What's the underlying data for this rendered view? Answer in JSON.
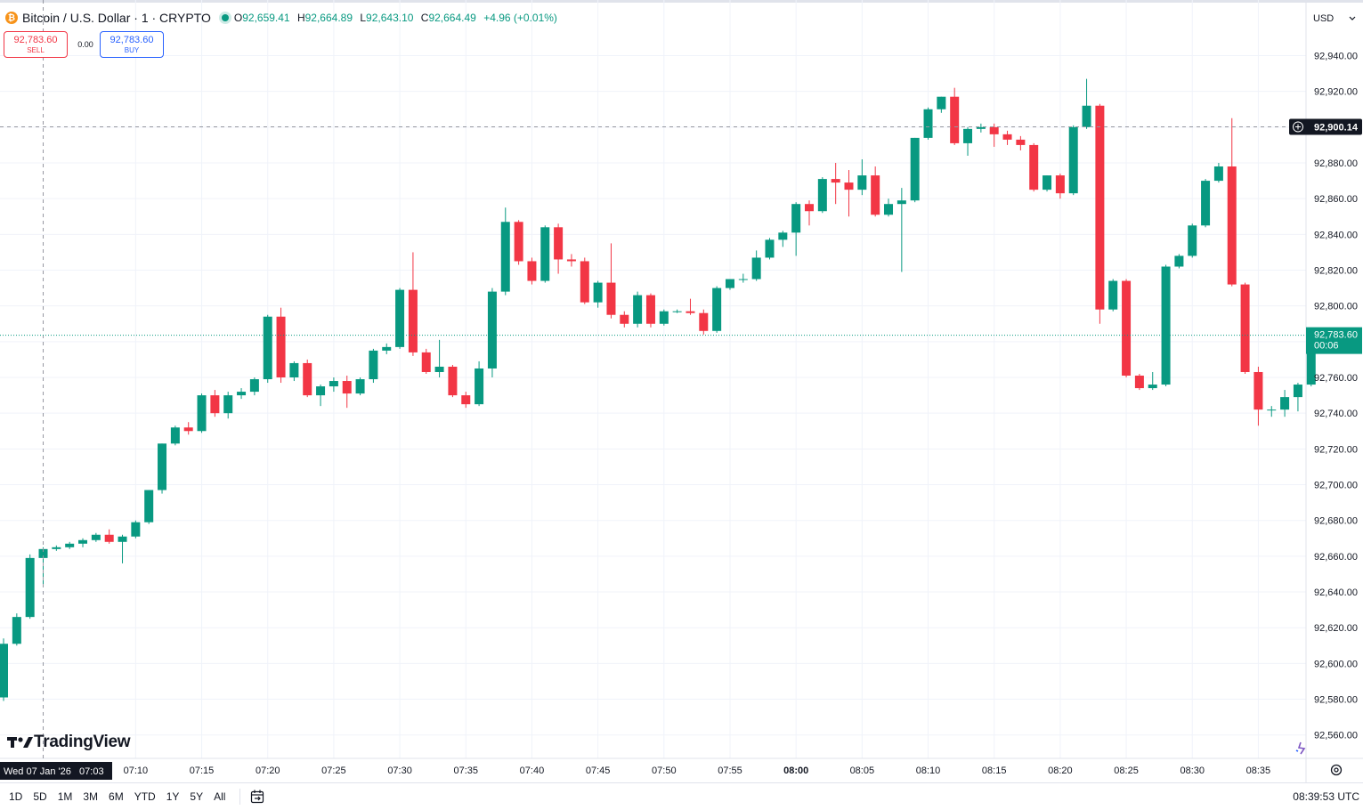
{
  "header": {
    "coin_icon_glyph": "₿",
    "symbol_title": "Bitcoin / U.S. Dollar · 1 · CRYPTO",
    "ohlc": {
      "o_label": "O",
      "o": "92,659.41",
      "h_label": "H",
      "h": "92,664.89",
      "l_label": "L",
      "l": "92,643.10",
      "c_label": "C",
      "c": "92,664.49",
      "change": "+4.96 (+0.01%)"
    }
  },
  "trade": {
    "sell_price": "92,783.60",
    "sell_label": "SELL",
    "spread": "0.00",
    "buy_price": "92,783.60",
    "buy_label": "BUY"
  },
  "currency": {
    "label": "USD"
  },
  "branding": {
    "logo_text": "TradingView"
  },
  "bottom_bar": {
    "ranges": [
      "1D",
      "5D",
      "1M",
      "3M",
      "6M",
      "YTD",
      "1Y",
      "5Y",
      "All"
    ],
    "clock": "08:39:53 UTC"
  },
  "crosshair": {
    "time_label": "Wed 07 Jan '26   07:03",
    "price_label": "92,900.14"
  },
  "last_price": {
    "price": "92,783.60",
    "countdown": "00:06"
  },
  "colors": {
    "up": "#089981",
    "down": "#f23645",
    "grid": "#f0f3fa",
    "text": "#131722"
  },
  "chart_data": {
    "type": "candlestick",
    "symbol": "Bitcoin / U.S. Dollar",
    "interval": "1",
    "x_start": "07:00",
    "x_ticks": [
      "07:10",
      "07:15",
      "07:20",
      "07:25",
      "07:30",
      "07:35",
      "07:40",
      "07:45",
      "07:50",
      "07:55",
      "08:00",
      "08:05",
      "08:10",
      "08:15",
      "08:20",
      "08:25",
      "08:30",
      "08:35"
    ],
    "y_ticks": [
      "92,560.00",
      "92,580.00",
      "92,600.00",
      "92,620.00",
      "92,640.00",
      "92,660.00",
      "92,680.00",
      "92,700.00",
      "92,720.00",
      "92,740.00",
      "92,760.00",
      "92,780.00",
      "92,800.00",
      "92,820.00",
      "92,840.00",
      "92,860.00",
      "92,880.00",
      "92,900.00",
      "92,920.00",
      "92,940.00"
    ],
    "ylim": [
      92550,
      92963
    ],
    "grid": true,
    "candles": [
      {
        "t": "07:00",
        "o": 92581,
        "h": 92614,
        "l": 92579,
        "c": 92611
      },
      {
        "t": "07:01",
        "o": 92611,
        "h": 92628,
        "l": 92610,
        "c": 92626
      },
      {
        "t": "07:02",
        "o": 92626,
        "h": 92661,
        "l": 92625,
        "c": 92659
      },
      {
        "t": "07:03",
        "o": 92659,
        "h": 92665,
        "l": 92643,
        "c": 92664
      },
      {
        "t": "07:04",
        "o": 92664,
        "h": 92666,
        "l": 92663,
        "c": 92665
      },
      {
        "t": "07:05",
        "o": 92665,
        "h": 92668,
        "l": 92664,
        "c": 92667
      },
      {
        "t": "07:06",
        "o": 92667,
        "h": 92670,
        "l": 92665,
        "c": 92669
      },
      {
        "t": "07:07",
        "o": 92669,
        "h": 92673,
        "l": 92668,
        "c": 92672
      },
      {
        "t": "07:08",
        "o": 92672,
        "h": 92675,
        "l": 92667,
        "c": 92668
      },
      {
        "t": "07:09",
        "o": 92668,
        "h": 92672,
        "l": 92656,
        "c": 92671
      },
      {
        "t": "07:10",
        "o": 92671,
        "h": 92680,
        "l": 92670,
        "c": 92679
      },
      {
        "t": "07:11",
        "o": 92679,
        "h": 92697,
        "l": 92678,
        "c": 92697
      },
      {
        "t": "07:12",
        "o": 92697,
        "h": 92723,
        "l": 92695,
        "c": 92723
      },
      {
        "t": "07:13",
        "o": 92723,
        "h": 92733,
        "l": 92722,
        "c": 92732
      },
      {
        "t": "07:14",
        "o": 92732,
        "h": 92735,
        "l": 92728,
        "c": 92730
      },
      {
        "t": "07:15",
        "o": 92730,
        "h": 92751,
        "l": 92729,
        "c": 92750
      },
      {
        "t": "07:16",
        "o": 92750,
        "h": 92753,
        "l": 92738,
        "c": 92740
      },
      {
        "t": "07:17",
        "o": 92740,
        "h": 92752,
        "l": 92737,
        "c": 92750
      },
      {
        "t": "07:18",
        "o": 92750,
        "h": 92754,
        "l": 92748,
        "c": 92752
      },
      {
        "t": "07:19",
        "o": 92752,
        "h": 92760,
        "l": 92750,
        "c": 92759
      },
      {
        "t": "07:20",
        "o": 92759,
        "h": 92795,
        "l": 92757,
        "c": 92794
      },
      {
        "t": "07:21",
        "o": 92794,
        "h": 92799,
        "l": 92757,
        "c": 92760
      },
      {
        "t": "07:22",
        "o": 92760,
        "h": 92769,
        "l": 92758,
        "c": 92768
      },
      {
        "t": "07:23",
        "o": 92768,
        "h": 92770,
        "l": 92749,
        "c": 92750
      },
      {
        "t": "07:24",
        "o": 92750,
        "h": 92756,
        "l": 92744,
        "c": 92755
      },
      {
        "t": "07:25",
        "o": 92755,
        "h": 92760,
        "l": 92752,
        "c": 92758
      },
      {
        "t": "07:26",
        "o": 92758,
        "h": 92761,
        "l": 92743,
        "c": 92751
      },
      {
        "t": "07:27",
        "o": 92751,
        "h": 92760,
        "l": 92750,
        "c": 92759
      },
      {
        "t": "07:28",
        "o": 92759,
        "h": 92776,
        "l": 92757,
        "c": 92775
      },
      {
        "t": "07:29",
        "o": 92775,
        "h": 92779,
        "l": 92773,
        "c": 92777
      },
      {
        "t": "07:30",
        "o": 92777,
        "h": 92810,
        "l": 92776,
        "c": 92809
      },
      {
        "t": "07:31",
        "o": 92809,
        "h": 92830,
        "l": 92772,
        "c": 92774
      },
      {
        "t": "07:32",
        "o": 92774,
        "h": 92776,
        "l": 92762,
        "c": 92763
      },
      {
        "t": "07:33",
        "o": 92763,
        "h": 92781,
        "l": 92760,
        "c": 92766
      },
      {
        "t": "07:34",
        "o": 92766,
        "h": 92767,
        "l": 92749,
        "c": 92750
      },
      {
        "t": "07:35",
        "o": 92750,
        "h": 92752,
        "l": 92743,
        "c": 92745
      },
      {
        "t": "07:36",
        "o": 92745,
        "h": 92769,
        "l": 92744,
        "c": 92765
      },
      {
        "t": "07:37",
        "o": 92765,
        "h": 92810,
        "l": 92760,
        "c": 92808
      },
      {
        "t": "07:38",
        "o": 92808,
        "h": 92855,
        "l": 92806,
        "c": 92847
      },
      {
        "t": "07:39",
        "o": 92847,
        "h": 92848,
        "l": 92823,
        "c": 92825
      },
      {
        "t": "07:40",
        "o": 92825,
        "h": 92827,
        "l": 92812,
        "c": 92814
      },
      {
        "t": "07:41",
        "o": 92814,
        "h": 92845,
        "l": 92813,
        "c": 92844
      },
      {
        "t": "07:42",
        "o": 92844,
        "h": 92846,
        "l": 92818,
        "c": 92826
      },
      {
        "t": "07:43",
        "o": 92826,
        "h": 92829,
        "l": 92822,
        "c": 92825
      },
      {
        "t": "07:44",
        "o": 92825,
        "h": 92827,
        "l": 92801,
        "c": 92802
      },
      {
        "t": "07:45",
        "o": 92802,
        "h": 92814,
        "l": 92799,
        "c": 92813
      },
      {
        "t": "07:46",
        "o": 92813,
        "h": 92835,
        "l": 92793,
        "c": 92795
      },
      {
        "t": "07:47",
        "o": 92795,
        "h": 92797,
        "l": 92788,
        "c": 92790
      },
      {
        "t": "07:48",
        "o": 92790,
        "h": 92808,
        "l": 92788,
        "c": 92806
      },
      {
        "t": "07:49",
        "o": 92806,
        "h": 92807,
        "l": 92788,
        "c": 92790
      },
      {
        "t": "07:50",
        "o": 92790,
        "h": 92798,
        "l": 92789,
        "c": 92797
      },
      {
        "t": "07:51",
        "o": 92797,
        "h": 92798,
        "l": 92796,
        "c": 92797
      },
      {
        "t": "07:52",
        "o": 92797,
        "h": 92804,
        "l": 92795,
        "c": 92796
      },
      {
        "t": "07:53",
        "o": 92796,
        "h": 92798,
        "l": 92784,
        "c": 92786
      },
      {
        "t": "07:54",
        "o": 92786,
        "h": 92811,
        "l": 92785,
        "c": 92810
      },
      {
        "t": "07:55",
        "o": 92810,
        "h": 92815,
        "l": 92809,
        "c": 92815
      },
      {
        "t": "07:56",
        "o": 92815,
        "h": 92818,
        "l": 92813,
        "c": 92815
      },
      {
        "t": "07:57",
        "o": 92815,
        "h": 92831,
        "l": 92814,
        "c": 92827
      },
      {
        "t": "07:58",
        "o": 92827,
        "h": 92838,
        "l": 92826,
        "c": 92837
      },
      {
        "t": "07:59",
        "o": 92837,
        "h": 92842,
        "l": 92833,
        "c": 92841
      },
      {
        "t": "08:00",
        "o": 92841,
        "h": 92858,
        "l": 92828,
        "c": 92857
      },
      {
        "t": "08:01",
        "o": 92857,
        "h": 92859,
        "l": 92845,
        "c": 92853
      },
      {
        "t": "08:02",
        "o": 92853,
        "h": 92872,
        "l": 92852,
        "c": 92871
      },
      {
        "t": "08:03",
        "o": 92871,
        "h": 92880,
        "l": 92857,
        "c": 92869
      },
      {
        "t": "08:04",
        "o": 92869,
        "h": 92876,
        "l": 92850,
        "c": 92865
      },
      {
        "t": "08:05",
        "o": 92865,
        "h": 92882,
        "l": 92862,
        "c": 92873
      },
      {
        "t": "08:06",
        "o": 92873,
        "h": 92878,
        "l": 92850,
        "c": 92851
      },
      {
        "t": "08:07",
        "o": 92851,
        "h": 92860,
        "l": 92850,
        "c": 92857
      },
      {
        "t": "08:08",
        "o": 92857,
        "h": 92866,
        "l": 92819,
        "c": 92859
      },
      {
        "t": "08:09",
        "o": 92859,
        "h": 92894,
        "l": 92858,
        "c": 92894
      },
      {
        "t": "08:10",
        "o": 92894,
        "h": 92911,
        "l": 92893,
        "c": 92910
      },
      {
        "t": "08:11",
        "o": 92910,
        "h": 92917,
        "l": 92908,
        "c": 92917
      },
      {
        "t": "08:12",
        "o": 92917,
        "h": 92922,
        "l": 92890,
        "c": 92891
      },
      {
        "t": "08:13",
        "o": 92891,
        "h": 92900,
        "l": 92884,
        "c": 92899
      },
      {
        "t": "08:14",
        "o": 92899,
        "h": 92902,
        "l": 92897,
        "c": 92900
      },
      {
        "t": "08:15",
        "o": 92900,
        "h": 92902,
        "l": 92889,
        "c": 92896
      },
      {
        "t": "08:16",
        "o": 92896,
        "h": 92898,
        "l": 92890,
        "c": 92893
      },
      {
        "t": "08:17",
        "o": 92893,
        "h": 92895,
        "l": 92887,
        "c": 92890
      },
      {
        "t": "08:18",
        "o": 92890,
        "h": 92891,
        "l": 92864,
        "c": 92865
      },
      {
        "t": "08:19",
        "o": 92865,
        "h": 92873,
        "l": 92864,
        "c": 92873
      },
      {
        "t": "08:20",
        "o": 92873,
        "h": 92874,
        "l": 92860,
        "c": 92863
      },
      {
        "t": "08:21",
        "o": 92863,
        "h": 92901,
        "l": 92862,
        "c": 92900
      },
      {
        "t": "08:22",
        "o": 92900,
        "h": 92927,
        "l": 92899,
        "c": 92912
      },
      {
        "t": "08:23",
        "o": 92912,
        "h": 92913,
        "l": 92790,
        "c": 92798
      },
      {
        "t": "08:24",
        "o": 92798,
        "h": 92815,
        "l": 92797,
        "c": 92814
      },
      {
        "t": "08:25",
        "o": 92814,
        "h": 92815,
        "l": 92760,
        "c": 92761
      },
      {
        "t": "08:26",
        "o": 92761,
        "h": 92762,
        "l": 92753,
        "c": 92754
      },
      {
        "t": "08:27",
        "o": 92754,
        "h": 92763,
        "l": 92753,
        "c": 92756
      },
      {
        "t": "08:28",
        "o": 92756,
        "h": 92823,
        "l": 92755,
        "c": 92822
      },
      {
        "t": "08:29",
        "o": 92822,
        "h": 92829,
        "l": 92821,
        "c": 92828
      },
      {
        "t": "08:30",
        "o": 92828,
        "h": 92846,
        "l": 92827,
        "c": 92845
      },
      {
        "t": "08:31",
        "o": 92845,
        "h": 92871,
        "l": 92844,
        "c": 92870
      },
      {
        "t": "08:32",
        "o": 92870,
        "h": 92880,
        "l": 92869,
        "c": 92878
      },
      {
        "t": "08:33",
        "o": 92878,
        "h": 92905,
        "l": 92811,
        "c": 92812
      },
      {
        "t": "08:34",
        "o": 92812,
        "h": 92813,
        "l": 92762,
        "c": 92763
      },
      {
        "t": "08:35",
        "o": 92763,
        "h": 92766,
        "l": 92733,
        "c": 92742
      },
      {
        "t": "08:36",
        "o": 92742,
        "h": 92744,
        "l": 92738,
        "c": 92742
      },
      {
        "t": "08:37",
        "o": 92742,
        "h": 92753,
        "l": 92738,
        "c": 92749
      },
      {
        "t": "08:38",
        "o": 92749,
        "h": 92757,
        "l": 92741,
        "c": 92756
      },
      {
        "t": "08:39",
        "o": 92756,
        "h": 92784,
        "l": 92755,
        "c": 92784
      }
    ]
  }
}
